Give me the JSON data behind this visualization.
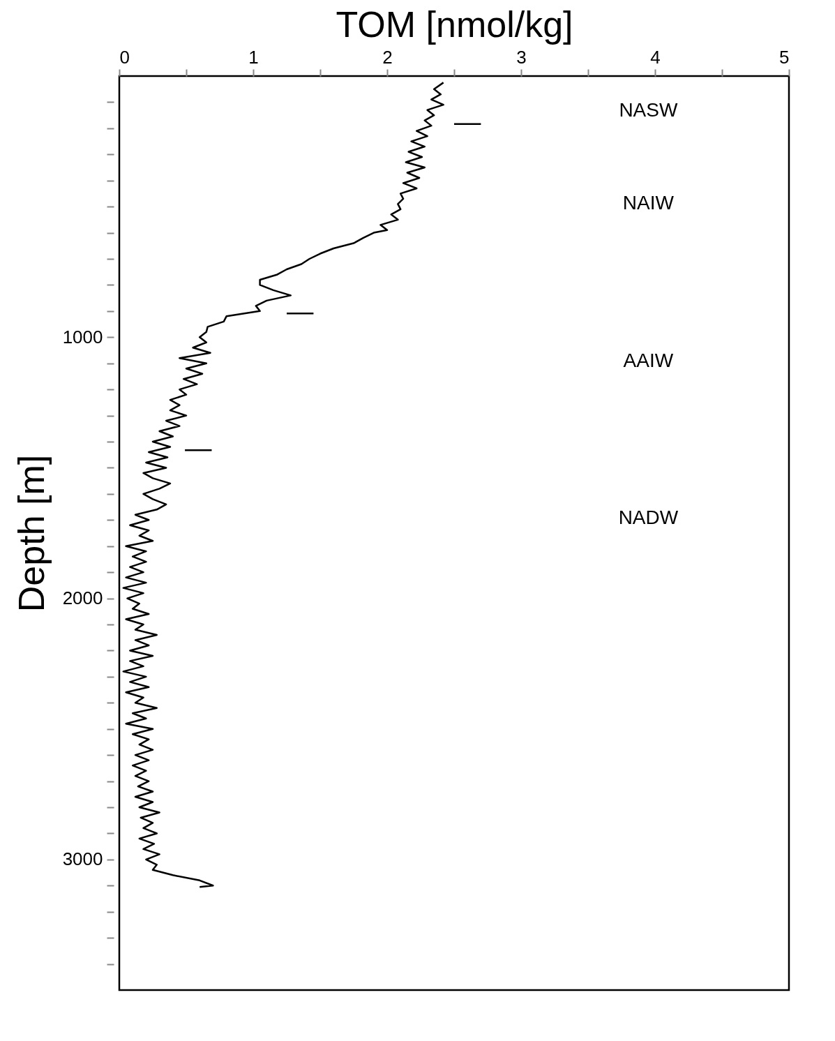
{
  "chart_data": {
    "type": "line",
    "xlabel": "TOM [nmol/kg]",
    "ylabel": "Depth [m]",
    "xlim": [
      0,
      5
    ],
    "ylim": [
      3500,
      0
    ],
    "xticks": [
      0,
      {
        "value": 0.5,
        "label": null
      },
      1,
      {
        "value": 1.5,
        "label": null
      },
      2,
      {
        "value": 2.5,
        "label": null
      },
      3,
      {
        "value": 3.5,
        "label": null
      },
      4,
      {
        "value": 4.5,
        "label": null
      },
      5
    ],
    "yticks": [
      {
        "value": 100,
        "label": null
      },
      {
        "value": 200,
        "label": null
      },
      {
        "value": 300,
        "label": null
      },
      {
        "value": 400,
        "label": null
      },
      {
        "value": 500,
        "label": null
      },
      {
        "value": 600,
        "label": null
      },
      {
        "value": 700,
        "label": null
      },
      {
        "value": 800,
        "label": null
      },
      {
        "value": 900,
        "label": null
      },
      1000,
      {
        "value": 1100,
        "label": null
      },
      {
        "value": 1200,
        "label": null
      },
      {
        "value": 1300,
        "label": null
      },
      {
        "value": 1400,
        "label": null
      },
      {
        "value": 1500,
        "label": null
      },
      {
        "value": 1600,
        "label": null
      },
      {
        "value": 1700,
        "label": null
      },
      {
        "value": 1800,
        "label": null
      },
      {
        "value": 1900,
        "label": null
      },
      2000,
      {
        "value": 2100,
        "label": null
      },
      {
        "value": 2200,
        "label": null
      },
      {
        "value": 2300,
        "label": null
      },
      {
        "value": 2400,
        "label": null
      },
      {
        "value": 2500,
        "label": null
      },
      {
        "value": 2600,
        "label": null
      },
      {
        "value": 2700,
        "label": null
      },
      {
        "value": 2800,
        "label": null
      },
      {
        "value": 2900,
        "label": null
      },
      3000,
      {
        "value": 3100,
        "label": null
      },
      {
        "value": 3200,
        "label": null
      },
      {
        "value": 3300,
        "label": null
      },
      {
        "value": 3400,
        "label": null
      }
    ],
    "grid": false,
    "marker": "none",
    "line_style": "solid",
    "series": [
      {
        "color": "#000000",
        "x": [
          2.42,
          2.35,
          2.4,
          2.33,
          2.42,
          2.3,
          2.35,
          2.28,
          2.33,
          2.22,
          2.3,
          2.18,
          2.28,
          2.16,
          2.26,
          2.14,
          2.28,
          2.15,
          2.24,
          2.12,
          2.22,
          2.1,
          2.12,
          2.08,
          2.1,
          2.03,
          2.08,
          1.95,
          2.0,
          1.9,
          1.82,
          1.75,
          1.6,
          1.5,
          1.42,
          1.36,
          1.25,
          1.18,
          1.05,
          1.05,
          1.15,
          1.28,
          1.1,
          1.02,
          1.05,
          0.8,
          0.78,
          0.66,
          0.65,
          0.6,
          0.65,
          0.55,
          0.68,
          0.45,
          0.65,
          0.5,
          0.62,
          0.48,
          0.58,
          0.45,
          0.5,
          0.38,
          0.45,
          0.38,
          0.5,
          0.35,
          0.45,
          0.3,
          0.4,
          0.25,
          0.38,
          0.22,
          0.36,
          0.2,
          0.35,
          0.18,
          0.25,
          0.38,
          0.3,
          0.18,
          0.25,
          0.35,
          0.28,
          0.12,
          0.22,
          0.08,
          0.22,
          0.15,
          0.25,
          0.05,
          0.2,
          0.1,
          0.2,
          0.08,
          0.18,
          0.05,
          0.2,
          0.03,
          0.18,
          0.06,
          0.15,
          0.1,
          0.22,
          0.05,
          0.18,
          0.12,
          0.28,
          0.12,
          0.22,
          0.08,
          0.25,
          0.08,
          0.18,
          0.03,
          0.2,
          0.08,
          0.22,
          0.05,
          0.18,
          0.12,
          0.28,
          0.1,
          0.2,
          0.05,
          0.25,
          0.1,
          0.22,
          0.15,
          0.25,
          0.12,
          0.22,
          0.1,
          0.2,
          0.12,
          0.22,
          0.14,
          0.25,
          0.12,
          0.25,
          0.15,
          0.3,
          0.16,
          0.25,
          0.18,
          0.28,
          0.15,
          0.26,
          0.18,
          0.3,
          0.2,
          0.28,
          0.25,
          0.4,
          0.6,
          0.7,
          0.6
        ],
        "values": [
          25,
          50,
          70,
          90,
          110,
          130,
          150,
          170,
          190,
          210,
          230,
          250,
          270,
          290,
          310,
          330,
          350,
          370,
          390,
          410,
          430,
          450,
          470,
          490,
          510,
          530,
          550,
          570,
          590,
          600,
          620,
          640,
          660,
          680,
          700,
          720,
          740,
          760,
          780,
          800,
          820,
          840,
          860,
          880,
          900,
          920,
          940,
          960,
          980,
          1000,
          1020,
          1040,
          1060,
          1080,
          1100,
          1120,
          1140,
          1160,
          1180,
          1200,
          1220,
          1240,
          1260,
          1280,
          1300,
          1320,
          1340,
          1360,
          1380,
          1400,
          1420,
          1440,
          1460,
          1480,
          1500,
          1520,
          1540,
          1560,
          1580,
          1600,
          1620,
          1640,
          1660,
          1680,
          1700,
          1720,
          1740,
          1760,
          1780,
          1800,
          1820,
          1840,
          1860,
          1880,
          1900,
          1920,
          1940,
          1960,
          1980,
          2000,
          2020,
          2040,
          2060,
          2080,
          2100,
          2120,
          2140,
          2160,
          2180,
          2200,
          2220,
          2240,
          2260,
          2280,
          2300,
          2320,
          2340,
          2360,
          2380,
          2400,
          2420,
          2440,
          2460,
          2480,
          2500,
          2520,
          2540,
          2560,
          2580,
          2600,
          2620,
          2640,
          2660,
          2680,
          2700,
          2720,
          2740,
          2760,
          2780,
          2800,
          2820,
          2840,
          2860,
          2880,
          2900,
          2920,
          2940,
          2960,
          2980,
          3000,
          3020,
          3040,
          3060,
          3080,
          3100,
          3105
        ]
      },
      {
        "color": "#000000",
        "x": [
          2.5,
          2.7
        ],
        "values": [
          184,
          184
        ]
      },
      {
        "color": "#000000",
        "x": [
          1.25,
          1.45
        ],
        "values": [
          909,
          909
        ]
      },
      {
        "color": "#000000",
        "x": [
          0.49,
          0.69
        ],
        "values": [
          1433,
          1433
        ]
      }
    ],
    "annotations": [
      "NASW",
      "NAIW",
      "AAIW",
      "NADW"
    ]
  }
}
